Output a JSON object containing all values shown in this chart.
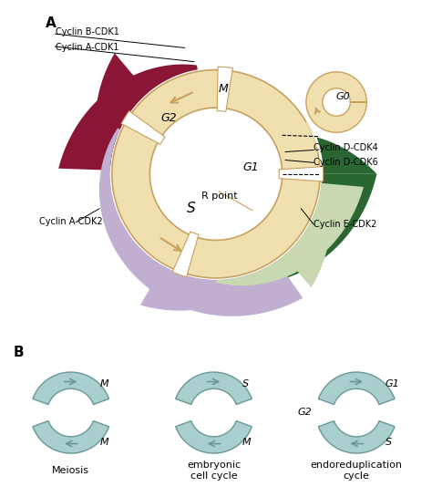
{
  "bg_color": "#ffffff",
  "ring_fill": "#f0e0b0",
  "ring_edge": "#c8a060",
  "crimson_color": "#8b1535",
  "purple_color": "#c0afd0",
  "light_green_color": "#c8d8b0",
  "dark_green_color": "#2a6632",
  "g0_fill": "#f0e0b0",
  "g0_edge": "#c8a060",
  "cyan_fill": "#a8cece",
  "cyan_edge": "#6a9898",
  "label_A": "A",
  "label_B": "B",
  "cyclin_B_CDK1": "Cyclin B-CDK1",
  "cyclin_A_CDK1": "Cyclin A-CDK1",
  "cyclin_A_CDK2": "Cyclin A-CDK2",
  "cyclin_D_CDK4": "Cyclin D-CDK4",
  "cyclin_D_CDK6": "Cyclin D-CDK6",
  "cyclin_E_CDK2": "Cyclin E-CDK2",
  "phase_M": "M",
  "phase_G2": "G2",
  "phase_S": "S",
  "phase_G1": "G1",
  "phase_G0": "G0",
  "R_point": "R point",
  "meiosis": "Meiosis",
  "embryonic": "embryonic\ncell cycle",
  "endoreduplication": "endoreduplication\ncycle"
}
